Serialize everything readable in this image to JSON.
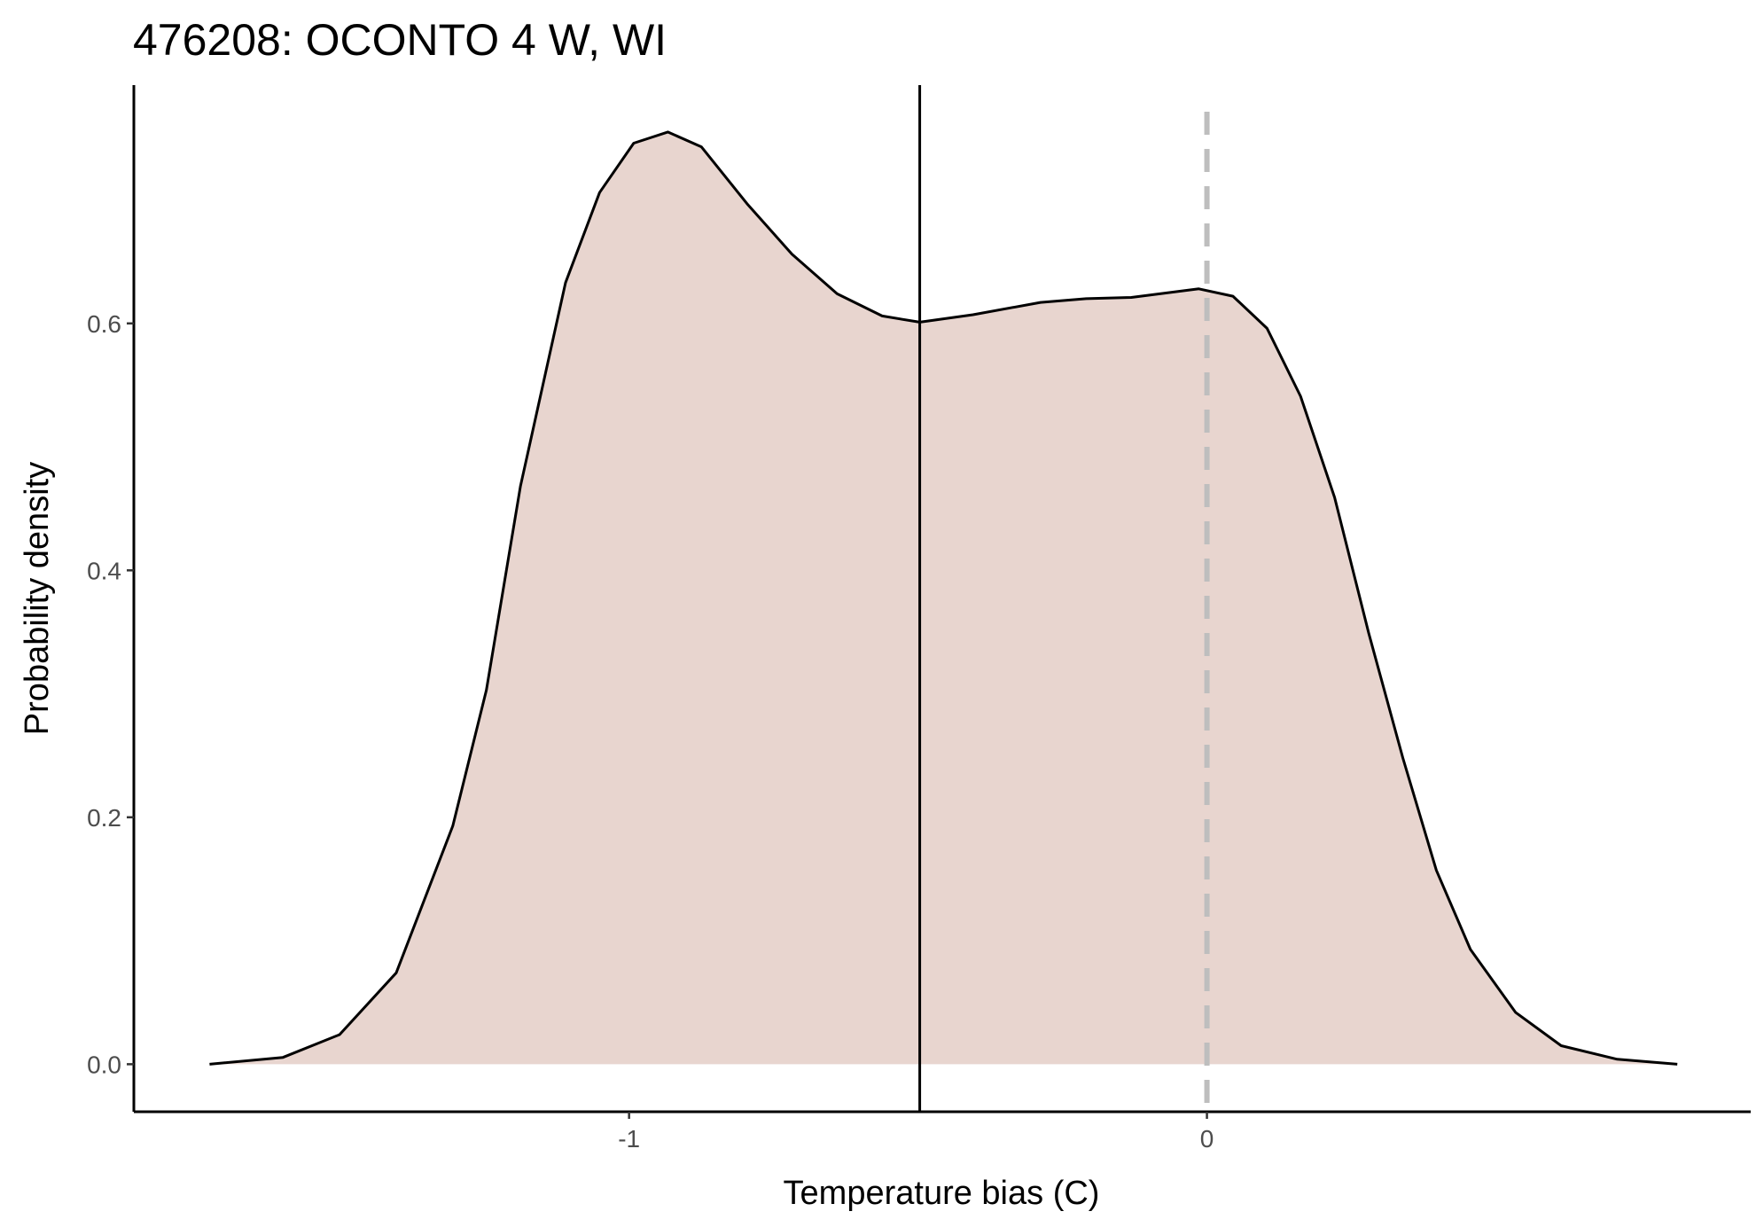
{
  "chart_data": {
    "type": "area",
    "title": "476208: OCONTO 4 W, WI",
    "x_label": "Temperature bias (C)",
    "y_label": "Probability density",
    "x": [
      -1.726,
      -1.599,
      -1.501,
      -1.403,
      -1.305,
      -1.247,
      -1.188,
      -1.11,
      -1.051,
      -0.992,
      -0.933,
      -0.875,
      -0.796,
      -0.718,
      -0.64,
      -0.562,
      -0.497,
      -0.405,
      -0.288,
      -0.209,
      -0.131,
      -0.014,
      0.045,
      0.104,
      0.162,
      0.221,
      0.28,
      0.339,
      0.397,
      0.456,
      0.534,
      0.613,
      0.71,
      0.814
    ],
    "values": [
      0.0,
      0.0055,
      0.024,
      0.074,
      0.193,
      0.303,
      0.468,
      0.633,
      0.706,
      0.746,
      0.755,
      0.743,
      0.697,
      0.656,
      0.624,
      0.606,
      0.601,
      0.607,
      0.617,
      0.62,
      0.621,
      0.628,
      0.622,
      0.596,
      0.541,
      0.459,
      0.349,
      0.248,
      0.157,
      0.093,
      0.042,
      0.015,
      0.004,
      0.0
    ],
    "color": "#000000",
    "fill": "#e8d5cf",
    "reference_lines": [
      {
        "x": -0.497,
        "color": "#000000",
        "dashed": false
      },
      {
        "x": 0,
        "color": "#bebebe",
        "dashed": true
      }
    ],
    "xlim": [
      -1.857,
      0.941
    ],
    "ylim": [
      -0.0385,
      0.793
    ],
    "xticks": [
      -1,
      0
    ],
    "yticks": [
      {
        "value": 0,
        "label": "0.0"
      },
      0.2,
      0.4,
      0.6
    ],
    "grid": false
  }
}
